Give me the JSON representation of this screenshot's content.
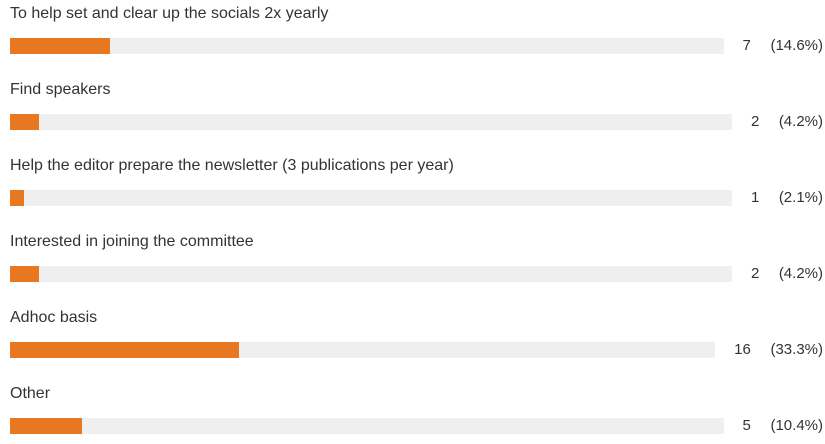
{
  "chart_data": {
    "type": "bar",
    "orientation": "horizontal",
    "categories": [
      "To help set and clear up the socials 2x yearly",
      "Find speakers",
      "Help the editor prepare the newsletter (3 publications per year)",
      "Interested in joining the committee",
      "Adhoc basis",
      "Other"
    ],
    "values": [
      7,
      2,
      1,
      2,
      16,
      5
    ],
    "percent_labels": [
      "(14.6%)",
      "(4.2%)",
      "(2.1%)",
      "(4.2%)",
      "(33.3%)",
      "(10.4%)"
    ],
    "percent_values": [
      14.6,
      4.2,
      2.1,
      4.2,
      33.3,
      10.4
    ],
    "grid": false,
    "legend": "none",
    "colors": {
      "bar": "#e87722",
      "track": "#efefef",
      "text": "#333333"
    }
  }
}
